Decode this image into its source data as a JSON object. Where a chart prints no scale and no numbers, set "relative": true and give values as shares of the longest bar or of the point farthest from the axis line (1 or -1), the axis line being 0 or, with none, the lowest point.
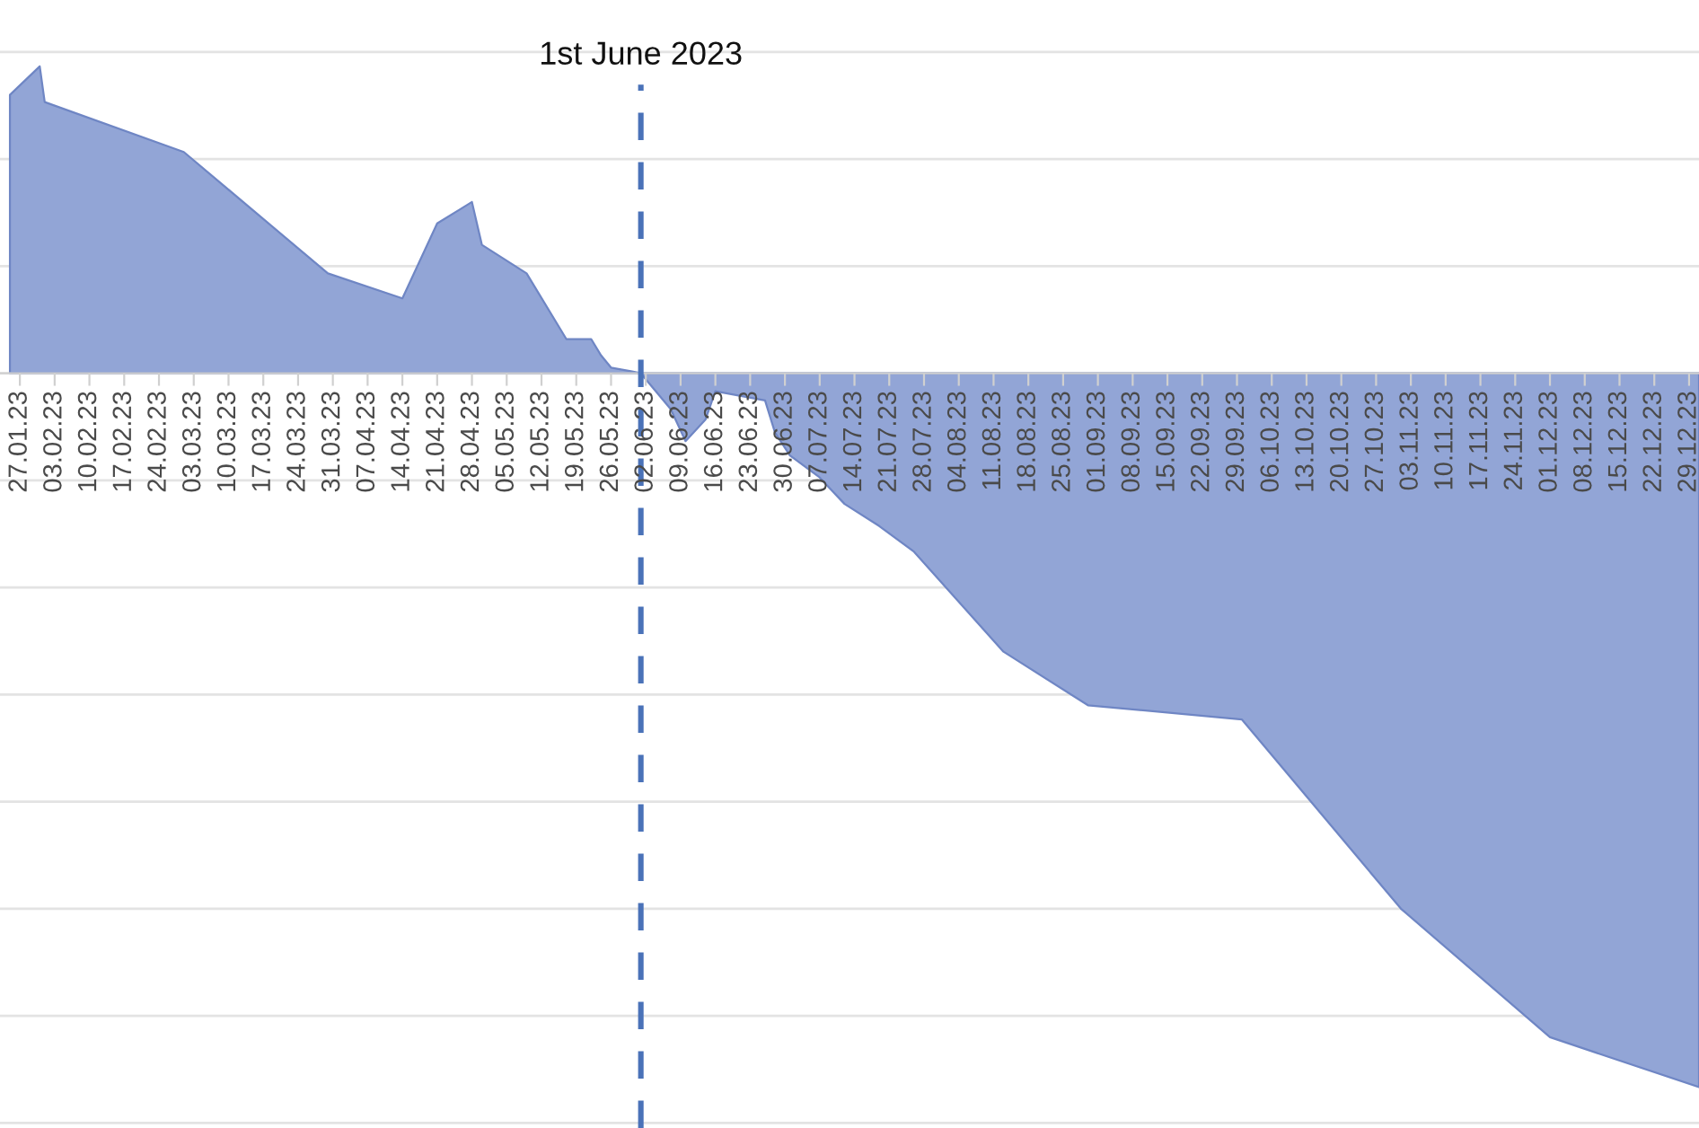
{
  "chart_data": {
    "type": "area",
    "relative": true,
    "grid": "y",
    "x": [
      "2023-01-25",
      "2023-01-31",
      "2023-02-01",
      "2023-03-01",
      "2023-03-30",
      "2023-04-14",
      "2023-04-21",
      "2023-04-28",
      "2023-04-30",
      "2023-05-09",
      "2023-05-17",
      "2023-05-22",
      "2023-05-24",
      "2023-05-26",
      "2023-05-30",
      "2023-06-01",
      "2023-06-07",
      "2023-06-10",
      "2023-06-14",
      "2023-06-16",
      "2023-06-26",
      "2023-06-28",
      "2023-07-01",
      "2023-07-07",
      "2023-07-12",
      "2023-07-19",
      "2023-07-26",
      "2023-08-13",
      "2023-08-30",
      "2023-09-30",
      "2023-11-01",
      "2023-12-01",
      "2023-12-31"
    ],
    "series": [
      {
        "color": "#92a5d6",
        "values": [
          0.39,
          0.43,
          0.38,
          0.31,
          0.14,
          0.105,
          0.21,
          0.24,
          0.18,
          0.14,
          0.048,
          0.048,
          0.025,
          0.008,
          0.003,
          0,
          -0.05,
          -0.095,
          -0.065,
          -0.025,
          -0.038,
          -0.083,
          -0.115,
          -0.146,
          -0.183,
          -0.214,
          -0.25,
          -0.39,
          -0.465,
          -0.485,
          -0.75,
          -0.93,
          -1
        ]
      }
    ],
    "xlim": [
      "2023-01-23",
      "2023-12-31"
    ],
    "xticks": [
      {
        "value": "2023-01-27",
        "label": "27.01.23"
      },
      {
        "value": "2023-02-03",
        "label": "03.02.23"
      },
      {
        "value": "2023-02-10",
        "label": "10.02.23"
      },
      {
        "value": "2023-02-17",
        "label": "17.02.23"
      },
      {
        "value": "2023-02-24",
        "label": "24.02.23"
      },
      {
        "value": "2023-03-03",
        "label": "03.03.23"
      },
      {
        "value": "2023-03-10",
        "label": "10.03.23"
      },
      {
        "value": "2023-03-17",
        "label": "17.03.23"
      },
      {
        "value": "2023-03-24",
        "label": "24.03.23"
      },
      {
        "value": "2023-03-31",
        "label": "31.03.23"
      },
      {
        "value": "2023-04-07",
        "label": "07.04.23"
      },
      {
        "value": "2023-04-14",
        "label": "14.04.23"
      },
      {
        "value": "2023-04-21",
        "label": "21.04.23"
      },
      {
        "value": "2023-04-28",
        "label": "28.04.23"
      },
      {
        "value": "2023-05-05",
        "label": "05.05.23"
      },
      {
        "value": "2023-05-12",
        "label": "12.05.23"
      },
      {
        "value": "2023-05-19",
        "label": "19.05.23"
      },
      {
        "value": "2023-05-26",
        "label": "26.05.23"
      },
      {
        "value": "2023-06-02",
        "label": "02.06.23"
      },
      {
        "value": "2023-06-09",
        "label": "09.06.23"
      },
      {
        "value": "2023-06-16",
        "label": "16.06.23"
      },
      {
        "value": "2023-06-23",
        "label": "23.06.23"
      },
      {
        "value": "2023-06-30",
        "label": "30.06.23"
      },
      {
        "value": "2023-07-07",
        "label": "07.07.23"
      },
      {
        "value": "2023-07-14",
        "label": "14.07.23"
      },
      {
        "value": "2023-07-21",
        "label": "21.07.23"
      },
      {
        "value": "2023-07-28",
        "label": "28.07.23"
      },
      {
        "value": "2023-08-04",
        "label": "04.08.23"
      },
      {
        "value": "2023-08-11",
        "label": "11.08.23"
      },
      {
        "value": "2023-08-18",
        "label": "18.08.23"
      },
      {
        "value": "2023-08-25",
        "label": "25.08.23"
      },
      {
        "value": "2023-09-01",
        "label": "01.09.23"
      },
      {
        "value": "2023-09-08",
        "label": "08.09.23"
      },
      {
        "value": "2023-09-15",
        "label": "15.09.23"
      },
      {
        "value": "2023-09-22",
        "label": "22.09.23"
      },
      {
        "value": "2023-09-29",
        "label": "29.09.23"
      },
      {
        "value": "2023-10-06",
        "label": "06.10.23"
      },
      {
        "value": "2023-10-13",
        "label": "13.10.23"
      },
      {
        "value": "2023-10-20",
        "label": "20.10.23"
      },
      {
        "value": "2023-10-27",
        "label": "27.10.23"
      },
      {
        "value": "2023-11-03",
        "label": "03.11.23"
      },
      {
        "value": "2023-11-10",
        "label": "10.11.23"
      },
      {
        "value": "2023-11-17",
        "label": "17.11.23"
      },
      {
        "value": "2023-11-24",
        "label": "24.11.23"
      },
      {
        "value": "2023-12-01",
        "label": "01.12.23"
      },
      {
        "value": "2023-12-08",
        "label": "08.12.23"
      },
      {
        "value": "2023-12-15",
        "label": "15.12.23"
      },
      {
        "value": "2023-12-22",
        "label": "22.12.23"
      },
      {
        "value": "2023-12-29",
        "label": "29.12.23"
      }
    ],
    "ref_lines": [
      {
        "axis": "x",
        "value": "2023-06-01",
        "label": "1st June 2023",
        "color": "#4a72b8",
        "line_style": "dashed"
      }
    ]
  }
}
